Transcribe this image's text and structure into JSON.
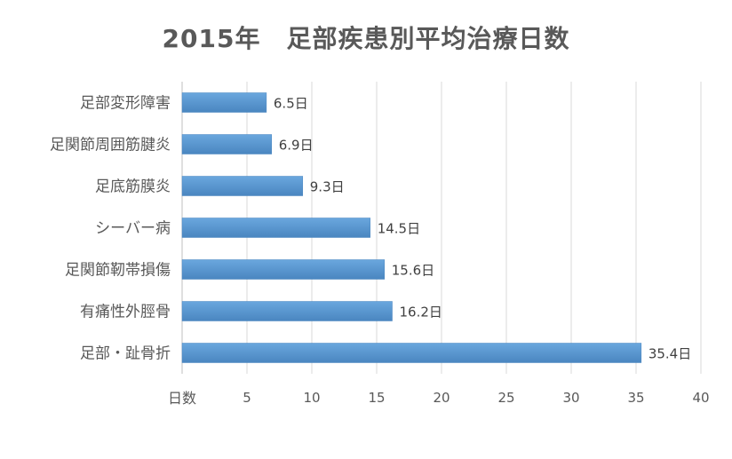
{
  "chart_data": {
    "type": "bar",
    "orientation": "horizontal",
    "title": "2015年　足部疾患別平均治療日数",
    "xlabel": "日数",
    "ylabel": "",
    "categories": [
      "足部変形障害",
      "足関節周囲筋腱炎",
      "足底筋膜炎",
      "シーバー病",
      "足関節靭帯損傷",
      "有痛性外脛骨",
      "足部・趾骨折"
    ],
    "values": [
      6.5,
      6.9,
      9.3,
      14.5,
      15.6,
      16.2,
      35.4
    ],
    "data_labels": [
      "6.5日",
      "6.9日",
      "9.3日",
      "14.5日",
      "15.6日",
      "16.2日",
      "35.4日"
    ],
    "xlim": [
      0,
      40
    ],
    "x_ticks": [
      5,
      10,
      15,
      20,
      25,
      30,
      35,
      40
    ],
    "x_tick_labels": [
      "5",
      "10",
      "15",
      "20",
      "25",
      "30",
      "35",
      "40"
    ],
    "grid": "vertical",
    "legend": "none",
    "colors": {
      "bar": "#5b9bd5",
      "bar_edge": "#4a86c0",
      "grid": "#d9d9d9",
      "title": "#595959",
      "text": "#595959"
    }
  }
}
